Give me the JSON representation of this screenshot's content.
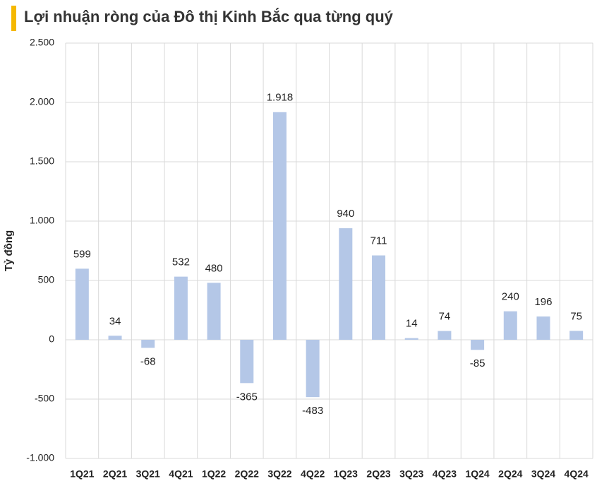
{
  "chart_data": {
    "type": "bar",
    "title": "Lợi nhuận ròng của Đô thị Kinh Bắc qua từng quý",
    "y_label": "Tỷ đồng",
    "categories": [
      "1Q21",
      "2Q21",
      "3Q21",
      "4Q21",
      "1Q22",
      "2Q22",
      "3Q22",
      "4Q22",
      "1Q23",
      "2Q23",
      "3Q23",
      "4Q23",
      "1Q24",
      "2Q24",
      "3Q24",
      "4Q24"
    ],
    "values": [
      599,
      34,
      -68,
      532,
      480,
      -365,
      1918,
      -483,
      940,
      711,
      14,
      74,
      -85,
      240,
      196,
      75
    ],
    "value_labels": [
      "599",
      "34",
      "-68",
      "532",
      "480",
      "-365",
      "1.918",
      "-483",
      "940",
      "711",
      "14",
      "74",
      "-85",
      "240",
      "196",
      "75"
    ],
    "color": "#b4c7e7",
    "ylim": [
      -1000,
      2500
    ],
    "yticks": [
      {
        "value": -1000,
        "label": "-1.000"
      },
      -500,
      0,
      500,
      {
        "value": 1000,
        "label": "1.000"
      },
      {
        "value": 1500,
        "label": "1.500"
      },
      {
        "value": 2000,
        "label": "2.000"
      },
      {
        "value": 2500,
        "label": "2.500"
      }
    ],
    "grid": true
  }
}
